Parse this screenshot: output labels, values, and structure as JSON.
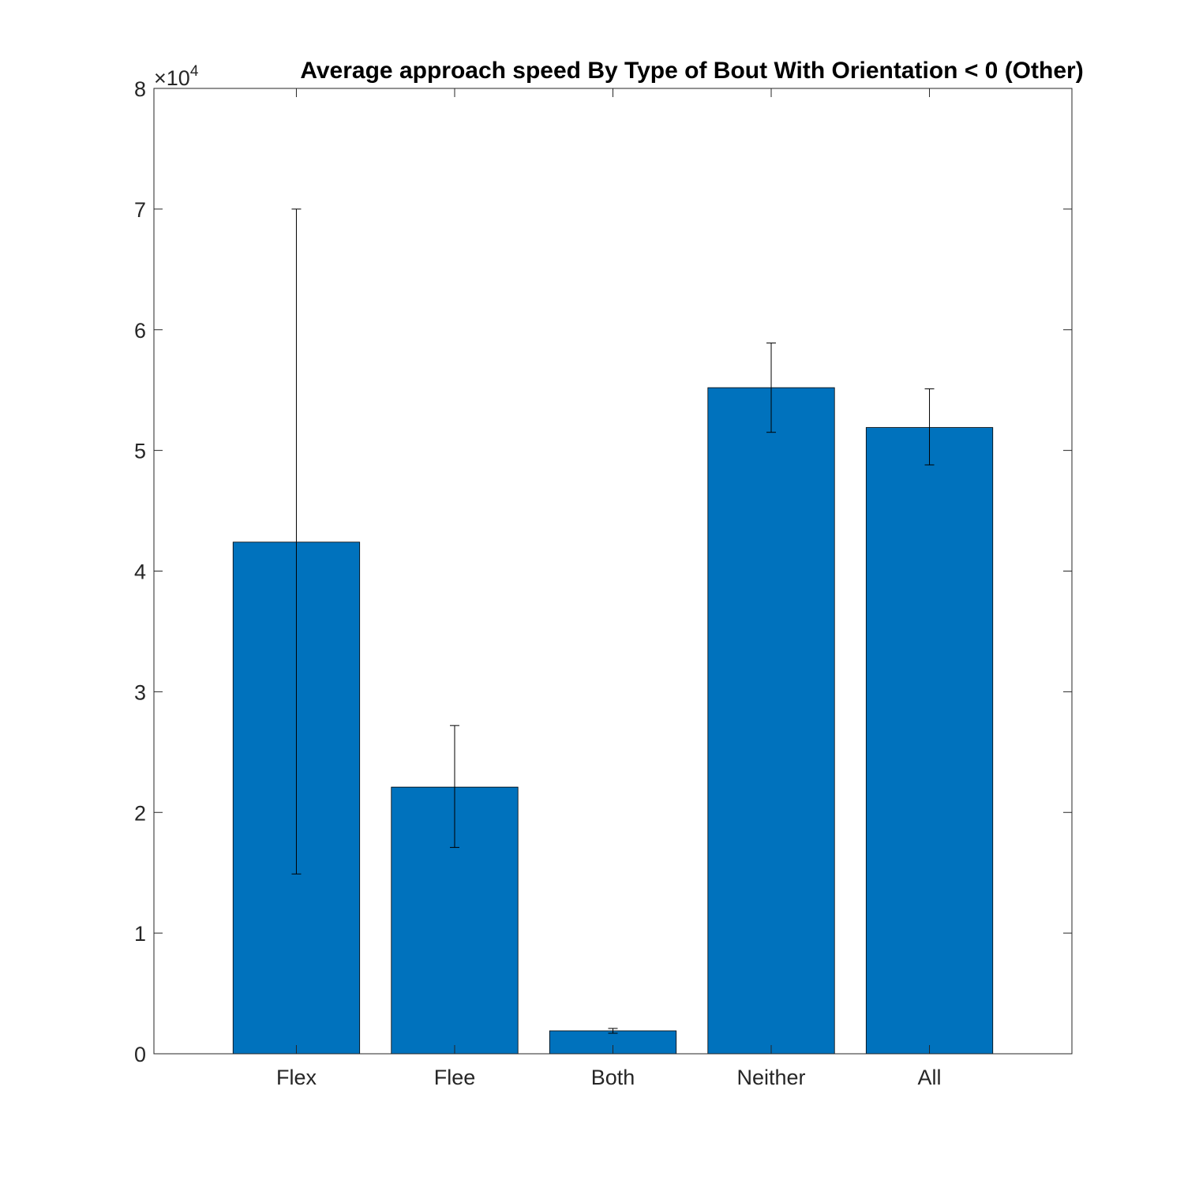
{
  "chart_data": {
    "type": "bar",
    "title": "Average approach speed By Type of Bout With Orientation < 0 (Other)",
    "xlabel": "",
    "ylabel": "",
    "y_multiplier": "×10",
    "y_multiplier_exponent": "4",
    "categories": [
      "Flex",
      "Flee",
      "Both",
      "Neither",
      "All"
    ],
    "values": [
      4.24,
      2.21,
      0.19,
      5.52,
      5.19
    ],
    "error_low": [
      1.49,
      1.71,
      0.17,
      5.15,
      4.88
    ],
    "error_high": [
      7.0,
      2.72,
      0.21,
      5.89,
      5.51
    ],
    "ylim": [
      0,
      8
    ],
    "yticks": [
      "0",
      "1",
      "2",
      "3",
      "4",
      "5",
      "6",
      "7",
      "8"
    ],
    "grid": false,
    "legend": "none",
    "bar_color": "#0072bd",
    "axis_color": "#262626"
  }
}
